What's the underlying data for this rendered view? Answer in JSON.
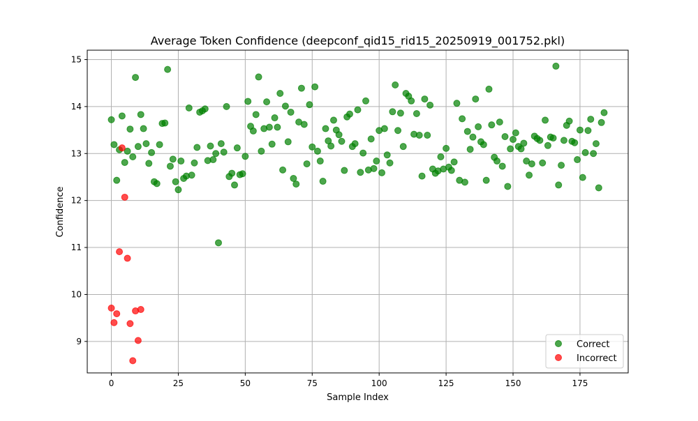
{
  "chart_data": {
    "type": "scatter",
    "title": "Average Token Confidence (deepconf_qid15_rid15_20250919_001752.pkl)",
    "xlabel": "Sample Index",
    "ylabel": "Confidence",
    "xlim": [
      -9,
      193
    ],
    "ylim": [
      8.33,
      15.2
    ],
    "xticks": [
      0,
      25,
      50,
      75,
      100,
      125,
      150,
      175
    ],
    "yticks": [
      9,
      10,
      11,
      12,
      13,
      14,
      15
    ],
    "grid": true,
    "legend_position": "lower-right",
    "series": [
      {
        "name": "Correct",
        "color": "#008000",
        "points": [
          [
            0,
            13.72
          ],
          [
            1,
            13.19
          ],
          [
            2,
            12.43
          ],
          [
            3,
            13.08
          ],
          [
            4,
            13.8
          ],
          [
            5,
            12.81
          ],
          [
            6,
            13.05
          ],
          [
            7,
            13.52
          ],
          [
            8,
            12.93
          ],
          [
            9,
            14.62
          ],
          [
            10,
            13.15
          ],
          [
            11,
            13.83
          ],
          [
            12,
            13.53
          ],
          [
            13,
            13.21
          ],
          [
            14,
            12.79
          ],
          [
            15,
            13.02
          ],
          [
            16,
            12.4
          ],
          [
            17,
            12.36
          ],
          [
            18,
            13.19
          ],
          [
            19,
            13.64
          ],
          [
            20,
            13.65
          ],
          [
            21,
            14.79
          ],
          [
            22,
            12.73
          ],
          [
            23,
            12.88
          ],
          [
            24,
            12.4
          ],
          [
            25,
            12.23
          ],
          [
            26,
            12.84
          ],
          [
            27,
            12.47
          ],
          [
            28,
            12.52
          ],
          [
            29,
            13.97
          ],
          [
            30,
            12.54
          ],
          [
            31,
            12.8
          ],
          [
            32,
            13.13
          ],
          [
            33,
            13.88
          ],
          [
            34,
            13.91
          ],
          [
            35,
            13.95
          ],
          [
            36,
            12.85
          ],
          [
            37,
            13.16
          ],
          [
            38,
            12.87
          ],
          [
            39,
            13.0
          ],
          [
            40,
            11.1
          ],
          [
            41,
            13.21
          ],
          [
            42,
            13.03
          ],
          [
            43,
            14.0
          ],
          [
            44,
            12.51
          ],
          [
            45,
            12.58
          ],
          [
            46,
            12.33
          ],
          [
            47,
            13.12
          ],
          [
            48,
            12.55
          ],
          [
            49,
            12.57
          ],
          [
            50,
            12.94
          ],
          [
            51,
            14.11
          ],
          [
            52,
            13.58
          ],
          [
            53,
            13.48
          ],
          [
            54,
            13.83
          ],
          [
            55,
            14.63
          ],
          [
            56,
            13.05
          ],
          [
            57,
            13.53
          ],
          [
            58,
            14.1
          ],
          [
            59,
            13.56
          ],
          [
            60,
            13.2
          ],
          [
            61,
            13.76
          ],
          [
            62,
            13.56
          ],
          [
            63,
            14.28
          ],
          [
            64,
            12.65
          ],
          [
            65,
            14.01
          ],
          [
            66,
            13.25
          ],
          [
            67,
            13.88
          ],
          [
            68,
            12.47
          ],
          [
            69,
            12.35
          ],
          [
            70,
            13.67
          ],
          [
            71,
            14.39
          ],
          [
            72,
            13.62
          ],
          [
            73,
            12.78
          ],
          [
            74,
            14.04
          ],
          [
            75,
            13.14
          ],
          [
            76,
            14.42
          ],
          [
            77,
            13.05
          ],
          [
            78,
            12.84
          ],
          [
            79,
            12.41
          ],
          [
            80,
            13.53
          ],
          [
            81,
            13.27
          ],
          [
            82,
            13.16
          ],
          [
            83,
            13.71
          ],
          [
            84,
            13.5
          ],
          [
            85,
            13.4
          ],
          [
            86,
            13.26
          ],
          [
            87,
            12.64
          ],
          [
            88,
            13.78
          ],
          [
            89,
            13.84
          ],
          [
            90,
            13.15
          ],
          [
            91,
            13.21
          ],
          [
            92,
            13.93
          ],
          [
            93,
            12.6
          ],
          [
            94,
            13.01
          ],
          [
            95,
            14.12
          ],
          [
            96,
            12.65
          ],
          [
            97,
            13.31
          ],
          [
            98,
            12.68
          ],
          [
            99,
            12.84
          ],
          [
            100,
            13.49
          ],
          [
            101,
            12.59
          ],
          [
            102,
            13.53
          ],
          [
            103,
            12.97
          ],
          [
            104,
            12.8
          ],
          [
            105,
            13.89
          ],
          [
            106,
            14.46
          ],
          [
            107,
            13.49
          ],
          [
            108,
            13.86
          ],
          [
            109,
            13.15
          ],
          [
            110,
            14.28
          ],
          [
            111,
            14.22
          ],
          [
            112,
            14.12
          ],
          [
            113,
            13.41
          ],
          [
            114,
            13.85
          ],
          [
            115,
            13.39
          ],
          [
            116,
            12.52
          ],
          [
            117,
            14.16
          ],
          [
            118,
            13.39
          ],
          [
            119,
            14.03
          ],
          [
            120,
            12.67
          ],
          [
            121,
            12.58
          ],
          [
            122,
            12.63
          ],
          [
            123,
            12.93
          ],
          [
            124,
            12.67
          ],
          [
            125,
            13.11
          ],
          [
            126,
            12.71
          ],
          [
            127,
            12.64
          ],
          [
            128,
            12.82
          ],
          [
            129,
            14.07
          ],
          [
            130,
            12.43
          ],
          [
            131,
            13.74
          ],
          [
            132,
            12.39
          ],
          [
            133,
            13.47
          ],
          [
            134,
            13.09
          ],
          [
            135,
            13.35
          ],
          [
            136,
            14.16
          ],
          [
            137,
            13.57
          ],
          [
            138,
            13.25
          ],
          [
            139,
            13.19
          ],
          [
            140,
            12.43
          ],
          [
            141,
            14.37
          ],
          [
            142,
            13.61
          ],
          [
            143,
            12.92
          ],
          [
            144,
            12.84
          ],
          [
            145,
            13.67
          ],
          [
            146,
            12.73
          ],
          [
            147,
            13.36
          ],
          [
            148,
            12.3
          ],
          [
            149,
            13.1
          ],
          [
            150,
            13.3
          ],
          [
            151,
            13.44
          ],
          [
            152,
            13.15
          ],
          [
            153,
            13.1
          ],
          [
            154,
            13.22
          ],
          [
            155,
            12.84
          ],
          [
            156,
            12.54
          ],
          [
            157,
            12.78
          ],
          [
            158,
            13.37
          ],
          [
            159,
            13.32
          ],
          [
            160,
            13.28
          ],
          [
            161,
            12.8
          ],
          [
            162,
            13.71
          ],
          [
            163,
            13.17
          ],
          [
            164,
            13.35
          ],
          [
            165,
            13.33
          ],
          [
            166,
            14.86
          ],
          [
            167,
            12.33
          ],
          [
            168,
            12.75
          ],
          [
            169,
            13.28
          ],
          [
            170,
            13.6
          ],
          [
            171,
            13.69
          ],
          [
            172,
            13.26
          ],
          [
            173,
            13.23
          ],
          [
            174,
            12.87
          ],
          [
            175,
            13.5
          ],
          [
            176,
            12.49
          ],
          [
            177,
            13.02
          ],
          [
            178,
            13.49
          ],
          [
            179,
            13.73
          ],
          [
            180,
            13.0
          ],
          [
            181,
            13.21
          ],
          [
            182,
            12.27
          ],
          [
            183,
            13.66
          ],
          [
            184,
            13.87
          ]
        ]
      },
      {
        "name": "Incorrect",
        "color": "#ff0000",
        "points": [
          [
            0,
            9.71
          ],
          [
            1,
            9.4
          ],
          [
            2,
            9.59
          ],
          [
            3,
            10.91
          ],
          [
            4,
            13.12
          ],
          [
            5,
            12.07
          ],
          [
            6,
            10.77
          ],
          [
            7,
            9.38
          ],
          [
            8,
            8.59
          ],
          [
            9,
            9.65
          ],
          [
            10,
            9.02
          ],
          [
            11,
            9.68
          ]
        ]
      }
    ]
  }
}
